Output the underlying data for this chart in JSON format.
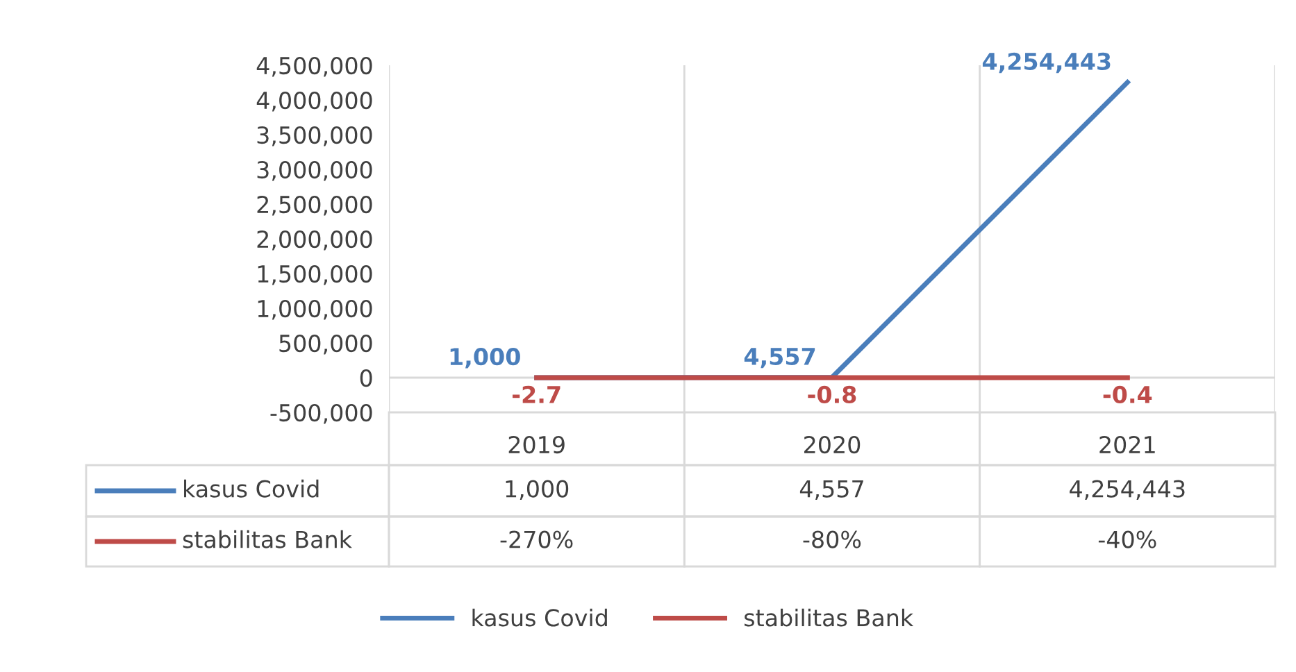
{
  "chart_data": {
    "type": "line",
    "categories": [
      "2019",
      "2020",
      "2021"
    ],
    "series": [
      {
        "name": "kasus Covid",
        "color": "#4a7ebb",
        "values": [
          1000,
          4557,
          4254443
        ],
        "value_labels": [
          "1,000",
          "4,557",
          "4,254,443"
        ]
      },
      {
        "name": "stabilitas Bank",
        "color": "#be4b48",
        "values": [
          -2.7,
          -0.8,
          -0.4
        ],
        "value_labels": [
          "-2.7",
          "-0.8",
          "-0.4"
        ]
      }
    ],
    "annotations": [
      "-270%",
      "-80%",
      "-40%"
    ],
    "ylim": [
      -500000,
      4500000
    ],
    "yticks": [
      {
        "value": -500000,
        "label": "-500,000"
      },
      0,
      {
        "value": 500000,
        "label": "500,000"
      },
      {
        "value": 1000000,
        "label": "1,000,000"
      },
      {
        "value": 1500000,
        "label": "1,500,000"
      },
      {
        "value": 2000000,
        "label": "2,000,000"
      },
      {
        "value": 2500000,
        "label": "2,500,000"
      },
      {
        "value": 3000000,
        "label": "3,000,000"
      },
      {
        "value": 3500000,
        "label": "3,500,000"
      },
      {
        "value": 4000000,
        "label": "4,000,000"
      },
      {
        "value": 4500000,
        "label": "4,500,000"
      }
    ],
    "legend": "bottom",
    "marker": "none",
    "line_style": "solid"
  }
}
